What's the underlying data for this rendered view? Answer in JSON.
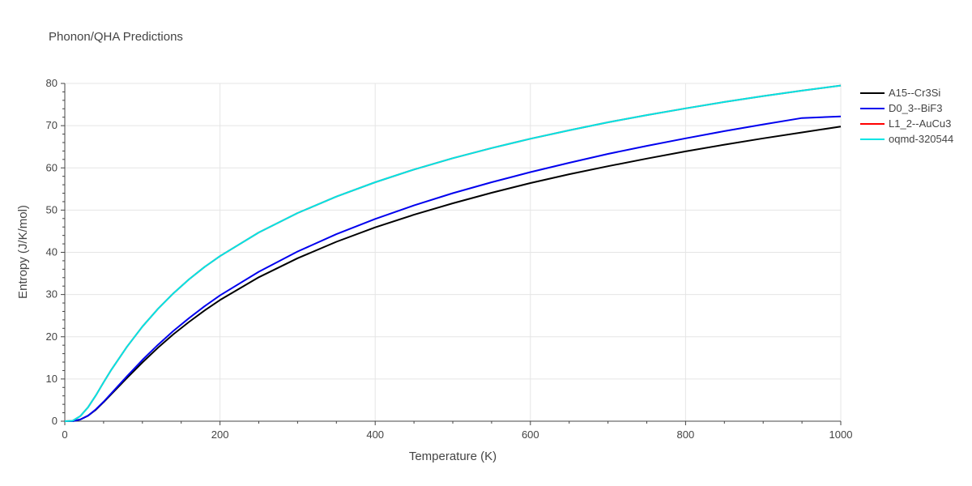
{
  "chart_data": {
    "type": "line",
    "title": "Phonon/QHA Predictions",
    "xlabel": "Temperature (K)",
    "ylabel": "Entropy (J/K/mol)",
    "xlim": [
      0,
      1000
    ],
    "ylim": [
      0,
      80
    ],
    "xticks": [
      0,
      200,
      400,
      600,
      800,
      1000
    ],
    "yticks": [
      0,
      10,
      20,
      30,
      40,
      50,
      60,
      70,
      80
    ],
    "grid": true,
    "legend_position": "top-right",
    "x": [
      0,
      10,
      20,
      30,
      40,
      50,
      60,
      80,
      100,
      120,
      140,
      160,
      180,
      200,
      250,
      300,
      350,
      400,
      450,
      500,
      550,
      600,
      650,
      700,
      750,
      800,
      850,
      900,
      950,
      1000
    ],
    "series": [
      {
        "name": "A15--Cr3Si",
        "color": "#000000",
        "values": [
          0,
          0,
          0.4,
          1.3,
          2.7,
          4.5,
          6.4,
          10.2,
          13.9,
          17.4,
          20.6,
          23.5,
          26.2,
          28.7,
          34.1,
          38.6,
          42.5,
          45.9,
          48.9,
          51.6,
          54.1,
          56.4,
          58.5,
          60.4,
          62.2,
          63.9,
          65.5,
          67.0,
          68.4,
          69.8
        ]
      },
      {
        "name": "D0_3--BiF3",
        "color": "#0000ee",
        "values": [
          0,
          0,
          0.4,
          1.3,
          2.8,
          4.6,
          6.6,
          10.6,
          14.5,
          18.1,
          21.4,
          24.4,
          27.2,
          29.8,
          35.4,
          40.2,
          44.3,
          47.9,
          51.1,
          54.0,
          56.6,
          59.0,
          61.2,
          63.3,
          65.2,
          67.0,
          68.7,
          70.3,
          71.8,
          72.2
        ]
      },
      {
        "name": "L1_2--AuCu3",
        "color": "#ff0000",
        "values": [
          0,
          0.1,
          1.2,
          3.3,
          6.1,
          9.2,
          12.2,
          17.6,
          22.4,
          26.6,
          30.3,
          33.6,
          36.5,
          39.1,
          44.7,
          49.3,
          53.2,
          56.6,
          59.6,
          62.3,
          64.7,
          66.9,
          68.9,
          70.8,
          72.5,
          74.1,
          75.6,
          77.0,
          78.3,
          79.5
        ]
      },
      {
        "name": "oqmd-320544",
        "color": "#00e5e5",
        "values": [
          0,
          0.1,
          1.2,
          3.3,
          6.1,
          9.2,
          12.2,
          17.6,
          22.4,
          26.6,
          30.3,
          33.6,
          36.5,
          39.1,
          44.7,
          49.3,
          53.2,
          56.6,
          59.6,
          62.3,
          64.7,
          66.9,
          68.9,
          70.8,
          72.5,
          74.1,
          75.6,
          77.0,
          78.3,
          79.5
        ]
      }
    ]
  }
}
